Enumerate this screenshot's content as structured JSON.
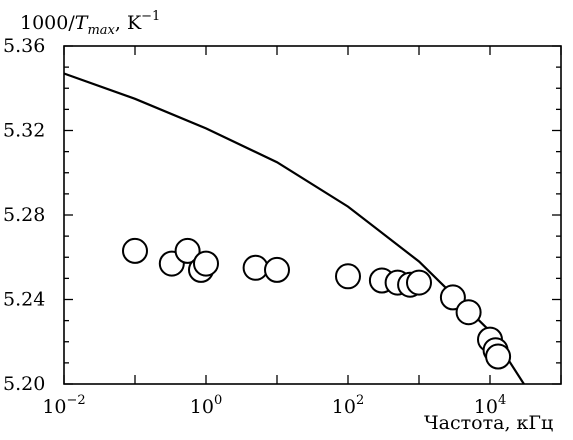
{
  "chart_data": {
    "type": "scatter",
    "ylabel": "1000/T_max, K⁻¹",
    "xlabel": "Частота, кГц",
    "x_scale": "log",
    "xlim": [
      0.01,
      100000
    ],
    "ylim": [
      5.2,
      5.36
    ],
    "y_ticks": [
      "5.20",
      "5.24",
      "5.28",
      "5.32",
      "5.36"
    ],
    "x_ticks": [
      {
        "base": "10",
        "exp": "−2"
      },
      {
        "base": "10",
        "exp": "0"
      },
      {
        "base": "10",
        "exp": "2"
      },
      {
        "base": "10",
        "exp": "4"
      }
    ],
    "grid": false,
    "series": [
      {
        "kind": "points",
        "x": [
          0.1,
          0.33,
          0.55,
          0.85,
          1.0,
          5.0,
          10,
          100,
          300,
          500,
          750,
          1000,
          3000,
          5000,
          10000,
          12000,
          13000
        ],
        "y": [
          5.263,
          5.257,
          5.263,
          5.254,
          5.257,
          5.255,
          5.254,
          5.251,
          5.249,
          5.248,
          5.247,
          5.248,
          5.241,
          5.234,
          5.221,
          5.216,
          5.213
        ]
      },
      {
        "kind": "line",
        "x": [
          0.01,
          0.1,
          1,
          10,
          100,
          1000,
          10000,
          30000
        ],
        "y": [
          5.347,
          5.335,
          5.321,
          5.305,
          5.284,
          5.258,
          5.225,
          5.2
        ]
      }
    ]
  }
}
